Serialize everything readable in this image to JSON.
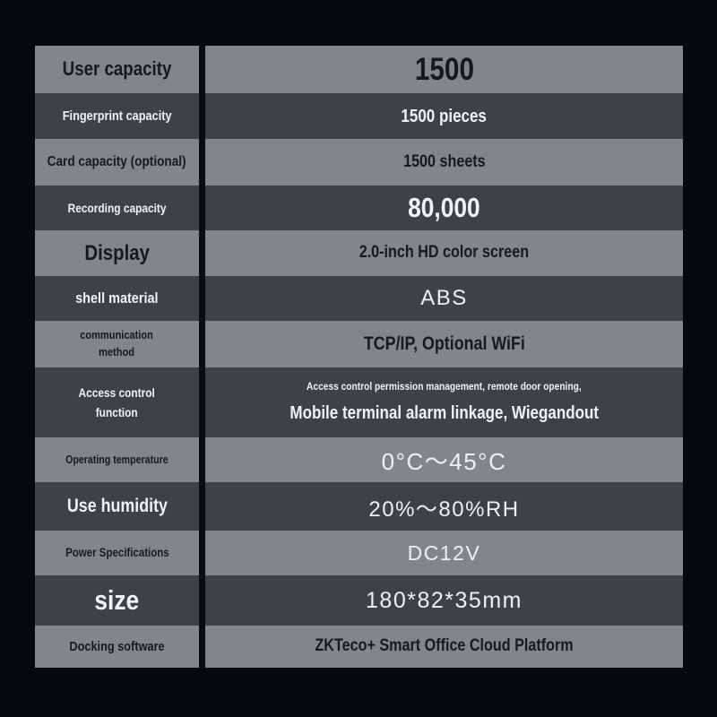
{
  "colors": {
    "page_bg": "#040a0b",
    "row_light": "#828689",
    "row_dark": "#3e4245",
    "text_dark": "#17191b",
    "text_light": "#f0f2f3",
    "divider": "#090d0e"
  },
  "rows": [
    {
      "label": "User capacity",
      "value": "1500"
    },
    {
      "label": "Fingerprint capacity",
      "value": "1500 pieces"
    },
    {
      "label": "Card capacity (optional)",
      "value": "1500 sheets"
    },
    {
      "label": "Recording capacity",
      "value": "80,000"
    },
    {
      "label": "Display",
      "value": "2.0-inch HD color screen"
    },
    {
      "label": "shell material",
      "value": "ABS"
    },
    {
      "label": "communication\nmethod",
      "value": "TCP/IP, Optional WiFi"
    },
    {
      "label": "Access control\nfunction",
      "value_line1": "Access control permission management, remote door opening,",
      "value_line2": "Mobile terminal alarm linkage, Wiegandout"
    },
    {
      "label": "Operating temperature",
      "value": "0°C～45°C"
    },
    {
      "label": "Use humidity",
      "value": "20%～80%RH"
    },
    {
      "label": "Power Specifications",
      "value": "DC12V"
    },
    {
      "label": "size",
      "value": "180*82*35mm"
    },
    {
      "label": "Docking software",
      "value": "ZKTeco+ Smart Office Cloud Platform"
    }
  ]
}
